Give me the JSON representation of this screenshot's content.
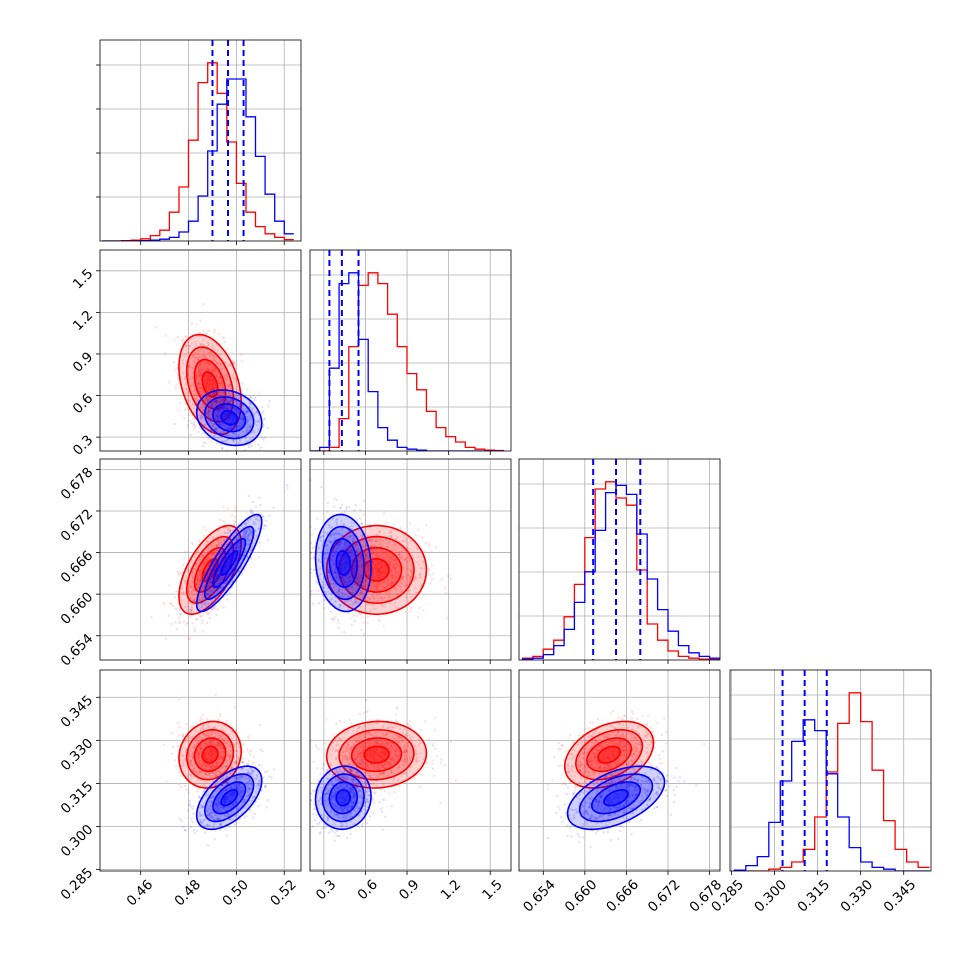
{
  "chart_data": {
    "type": "corner",
    "description_free": true,
    "parameters": [
      {
        "range": [
          0.443,
          0.527
        ],
        "ticks": [
          "0.46",
          "0.48",
          "0.50",
          "0.52"
        ],
        "tick_values": [
          0.46,
          0.48,
          0.5,
          0.52
        ]
      },
      {
        "range": [
          0.2,
          1.65
        ],
        "ticks": [
          "0.3",
          "0.6",
          "0.9",
          "1.2",
          "1.5"
        ],
        "tick_values": [
          0.3,
          0.6,
          0.9,
          1.2,
          1.5
        ]
      },
      {
        "range": [
          0.6505,
          0.6795
        ],
        "ticks": [
          "0.654",
          "0.660",
          "0.666",
          "0.672",
          "0.678"
        ],
        "tick_values": [
          0.654,
          0.66,
          0.666,
          0.672,
          0.678
        ]
      },
      {
        "range": [
          0.2845,
          0.3545
        ],
        "ticks": [
          "0.285",
          "0.300",
          "0.315",
          "0.330",
          "0.345"
        ],
        "tick_values": [
          0.285,
          0.3,
          0.315,
          0.33,
          0.345
        ]
      }
    ],
    "series": [
      {
        "color": "#ff0000",
        "mean": [
          0.489,
          0.68,
          0.6635,
          0.325
        ],
        "std": [
          0.0065,
          0.18,
          0.0032,
          0.0058
        ],
        "corr": [
          [
            0,
            1,
            -0.35
          ],
          [
            0,
            2,
            0.6
          ],
          [
            0,
            3,
            0.1
          ],
          [
            1,
            2,
            0.0
          ],
          [
            1,
            3,
            0.05
          ],
          [
            2,
            3,
            0.35
          ]
        ],
        "hist": [
          [
            0.444,
            0.0,
            0.448,
            0.0,
            0.452,
            0.002,
            0.456,
            0.005,
            0.46,
            0.012,
            0.464,
            0.03,
            0.468,
            0.06,
            0.472,
            0.16,
            0.476,
            0.3,
            0.48,
            0.56,
            0.484,
            0.88,
            0.488,
            0.99,
            0.492,
            0.82,
            0.496,
            0.55,
            0.5,
            0.32,
            0.504,
            0.16,
            0.508,
            0.08,
            0.512,
            0.04,
            0.516,
            0.02,
            0.52,
            0.008
          ],
          [
            0.2,
            0.0,
            0.27,
            0.0,
            0.34,
            0.02,
            0.41,
            0.18,
            0.48,
            0.58,
            0.55,
            0.92,
            0.62,
            0.99,
            0.69,
            0.93,
            0.76,
            0.76,
            0.83,
            0.58,
            0.9,
            0.43,
            0.97,
            0.34,
            1.04,
            0.22,
            1.11,
            0.13,
            1.18,
            0.08,
            1.25,
            0.05,
            1.32,
            0.02,
            1.39,
            0.01,
            1.46,
            0.005,
            1.53,
            0.003
          ],
          [
            0.651,
            0.01,
            0.6525,
            0.02,
            0.654,
            0.06,
            0.6555,
            0.11,
            0.657,
            0.24,
            0.6585,
            0.42,
            0.66,
            0.68,
            0.6615,
            0.95,
            0.663,
            0.99,
            0.6645,
            0.9,
            0.666,
            0.86,
            0.6675,
            0.5,
            0.669,
            0.2,
            0.6705,
            0.11,
            0.672,
            0.05,
            0.6735,
            0.02,
            0.675,
            0.01,
            0.6765,
            0.005,
            0.678,
            0.002
          ],
          [
            0.286,
            0.0,
            0.29,
            0.0,
            0.294,
            0.0,
            0.298,
            0.01,
            0.302,
            0.02,
            0.306,
            0.05,
            0.31,
            0.12,
            0.314,
            0.3,
            0.318,
            0.55,
            0.322,
            0.82,
            0.326,
            0.99,
            0.33,
            0.83,
            0.334,
            0.56,
            0.338,
            0.28,
            0.342,
            0.12,
            0.346,
            0.05,
            0.35,
            0.02
          ]
        ]
      },
      {
        "color": "#0000ff",
        "mean": [
          0.497,
          0.44,
          0.6645,
          0.31
        ],
        "std": [
          0.0068,
          0.1,
          0.0035,
          0.0055
        ],
        "corr": [
          [
            0,
            1,
            -0.2
          ],
          [
            0,
            2,
            0.85
          ],
          [
            0,
            3,
            0.55
          ],
          [
            1,
            2,
            -0.1
          ],
          [
            1,
            3,
            0.05
          ],
          [
            2,
            3,
            0.5
          ]
        ],
        "hist": [
          [
            0.444,
            0.0,
            0.448,
            0.0,
            0.452,
            0.0,
            0.456,
            0.0,
            0.46,
            0.002,
            0.464,
            0.005,
            0.468,
            0.01,
            0.472,
            0.02,
            0.476,
            0.05,
            0.48,
            0.11,
            0.484,
            0.25,
            0.488,
            0.5,
            0.492,
            0.76,
            0.496,
            0.9,
            0.5,
            0.9,
            0.504,
            0.69,
            0.508,
            0.47,
            0.512,
            0.26,
            0.516,
            0.11,
            0.52,
            0.04
          ],
          [
            0.2,
            0.0,
            0.27,
            0.02,
            0.34,
            0.46,
            0.41,
            0.93,
            0.48,
            0.99,
            0.55,
            0.62,
            0.62,
            0.33,
            0.69,
            0.13,
            0.76,
            0.06,
            0.83,
            0.02,
            0.9,
            0.01,
            0.97,
            0.005,
            1.04,
            0.0,
            1.11,
            0.0,
            1.18,
            0.0,
            1.25,
            0.0,
            1.32,
            0.0,
            1.39,
            0.0,
            1.46,
            0.0,
            1.53,
            0.0
          ],
          [
            0.651,
            0.005,
            0.6525,
            0.01,
            0.654,
            0.03,
            0.6555,
            0.08,
            0.657,
            0.17,
            0.6585,
            0.32,
            0.66,
            0.49,
            0.6615,
            0.72,
            0.663,
            0.93,
            0.6645,
            0.97,
            0.666,
            0.92,
            0.6675,
            0.7,
            0.669,
            0.45,
            0.6705,
            0.28,
            0.672,
            0.16,
            0.6735,
            0.08,
            0.675,
            0.04,
            0.6765,
            0.02,
            0.678,
            0.01
          ],
          [
            0.286,
            0.005,
            0.29,
            0.03,
            0.294,
            0.08,
            0.298,
            0.27,
            0.302,
            0.5,
            0.306,
            0.72,
            0.31,
            0.84,
            0.314,
            0.78,
            0.318,
            0.54,
            0.322,
            0.3,
            0.326,
            0.13,
            0.33,
            0.05,
            0.334,
            0.02,
            0.338,
            0.01,
            0.342,
            0.0,
            0.346,
            0.0,
            0.35,
            0.0
          ]
        ],
        "quantiles": [
          [
            0.49,
            0.4965,
            0.503
          ],
          [
            0.34,
            0.43,
            0.55
          ],
          [
            0.6612,
            0.6645,
            0.668
          ],
          [
            0.3028,
            0.3105,
            0.3182
          ]
        ]
      }
    ],
    "grid": true
  }
}
